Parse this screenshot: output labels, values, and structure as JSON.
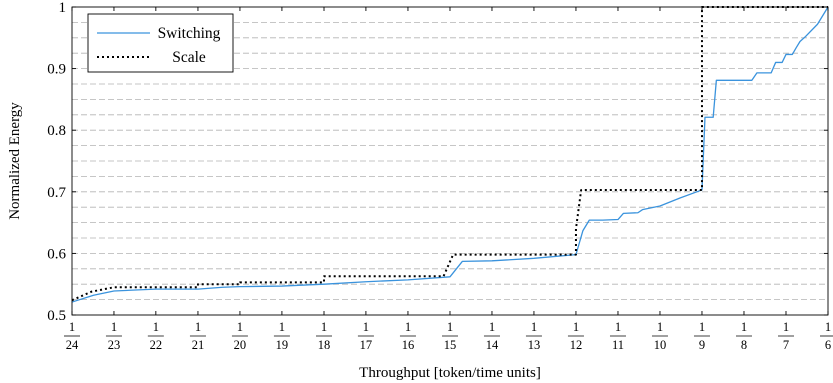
{
  "chart_data": {
    "type": "line",
    "title": "",
    "xlabel": "Throughput [token/time units]",
    "ylabel": "Normalized Energy",
    "xlim": [
      0.04167,
      0.16667
    ],
    "ylim": [
      0.5,
      1.0
    ],
    "grid": "horizontal-dashed",
    "legend_position": "top-left",
    "x_ticks": [
      {
        "num": "1",
        "den": "24",
        "value": 0.04167
      },
      {
        "num": "1",
        "den": "23",
        "value": 0.04348
      },
      {
        "num": "1",
        "den": "22",
        "value": 0.04545
      },
      {
        "num": "1",
        "den": "21",
        "value": 0.04762
      },
      {
        "num": "1",
        "den": "20",
        "value": 0.05
      },
      {
        "num": "1",
        "den": "19",
        "value": 0.05263
      },
      {
        "num": "1",
        "den": "18",
        "value": 0.05556
      },
      {
        "num": "1",
        "den": "17",
        "value": 0.05882
      },
      {
        "num": "1",
        "den": "16",
        "value": 0.0625
      },
      {
        "num": "1",
        "den": "15",
        "value": 0.06667
      },
      {
        "num": "1",
        "den": "14",
        "value": 0.07143
      },
      {
        "num": "1",
        "den": "13",
        "value": 0.07692
      },
      {
        "num": "1",
        "den": "12",
        "value": 0.08333
      },
      {
        "num": "1",
        "den": "11",
        "value": 0.09091
      },
      {
        "num": "1",
        "den": "10",
        "value": 0.1
      },
      {
        "num": "1",
        "den": "9",
        "value": 0.11111
      },
      {
        "num": "1",
        "den": "8",
        "value": 0.125
      },
      {
        "num": "1",
        "den": "7",
        "value": 0.14286
      },
      {
        "num": "1",
        "den": "6",
        "value": 0.16667
      }
    ],
    "y_ticks": [
      0.5,
      0.6,
      0.7,
      0.8,
      0.9,
      1
    ],
    "y_tick_labels": [
      "0.5",
      "0.6",
      "0.7",
      "0.8",
      "0.9",
      "1"
    ],
    "series": [
      {
        "name": "Switching",
        "color": "#3a93dd",
        "style": "solid",
        "points": [
          [
            0.04167,
            0.521
          ],
          [
            0.04258,
            0.532
          ],
          [
            0.04348,
            0.539
          ],
          [
            0.04545,
            0.542
          ],
          [
            0.04762,
            0.542
          ],
          [
            0.049,
            0.545
          ],
          [
            0.05,
            0.546
          ],
          [
            0.05263,
            0.547
          ],
          [
            0.05556,
            0.55
          ],
          [
            0.05882,
            0.554
          ],
          [
            0.0625,
            0.557
          ],
          [
            0.06667,
            0.562
          ],
          [
            0.068,
            0.587
          ],
          [
            0.07143,
            0.588
          ],
          [
            0.07692,
            0.592
          ],
          [
            0.08333,
            0.598
          ],
          [
            0.0845,
            0.637
          ],
          [
            0.0856,
            0.654
          ],
          [
            0.088,
            0.654
          ],
          [
            0.09091,
            0.655
          ],
          [
            0.092,
            0.665
          ],
          [
            0.095,
            0.666
          ],
          [
            0.096,
            0.671
          ],
          [
            0.1,
            0.677
          ],
          [
            0.105,
            0.69
          ],
          [
            0.11111,
            0.703
          ],
          [
            0.112,
            0.821
          ],
          [
            0.1145,
            0.821
          ],
          [
            0.1155,
            0.881
          ],
          [
            0.128,
            0.881
          ],
          [
            0.13,
            0.893
          ],
          [
            0.136,
            0.893
          ],
          [
            0.138,
            0.91
          ],
          [
            0.141,
            0.91
          ],
          [
            0.14286,
            0.923
          ],
          [
            0.146,
            0.923
          ],
          [
            0.148,
            0.934
          ],
          [
            0.15,
            0.944
          ],
          [
            0.153,
            0.952
          ],
          [
            0.16,
            0.972
          ],
          [
            0.16667,
            1.0
          ]
        ]
      },
      {
        "name": "Scale",
        "color": "#000000",
        "style": "dotted",
        "points": [
          [
            0.04167,
            0.524
          ],
          [
            0.0425,
            0.538
          ],
          [
            0.04348,
            0.545
          ],
          [
            0.04762,
            0.545
          ],
          [
            0.04762,
            0.55
          ],
          [
            0.05,
            0.55
          ],
          [
            0.05,
            0.553
          ],
          [
            0.05556,
            0.553
          ],
          [
            0.05556,
            0.563
          ],
          [
            0.066,
            0.563
          ],
          [
            0.067,
            0.598
          ],
          [
            0.08333,
            0.598
          ],
          [
            0.08333,
            0.64
          ],
          [
            0.0842,
            0.703
          ],
          [
            0.11111,
            0.703
          ],
          [
            0.11111,
            1.0
          ],
          [
            0.16667,
            1.0
          ]
        ]
      }
    ]
  }
}
